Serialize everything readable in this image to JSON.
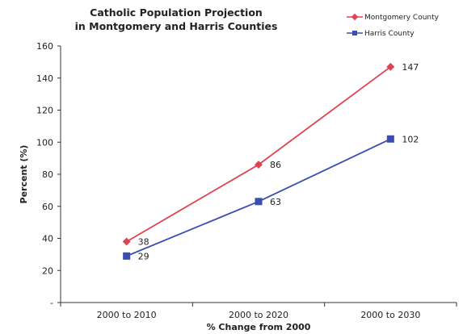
{
  "chart_data": {
    "type": "line",
    "title_lines": [
      "Catholic Population Projection",
      "in Montgomery and Harris Counties"
    ],
    "xlabel": "% Change from 2000",
    "ylabel": "Percent (%)",
    "categories": [
      "2000 to 2010",
      "2000 to 2020",
      "2000 to 2030"
    ],
    "ylim": [
      0,
      160
    ],
    "yticks": [
      0,
      20,
      40,
      60,
      80,
      100,
      120,
      140,
      160
    ],
    "ytick_labels": [
      "-",
      "20",
      "40",
      "60",
      "80",
      "100",
      "120",
      "140",
      "160"
    ],
    "grid": false,
    "legend_position": "top-right",
    "series": [
      {
        "name": "Montgomery County",
        "values": [
          38,
          86,
          147
        ],
        "value_labels": [
          "38",
          "86",
          "147"
        ],
        "color": "#e0424f",
        "marker": "diamond"
      },
      {
        "name": "Harris County",
        "values": [
          29,
          63,
          102
        ],
        "value_labels": [
          "29",
          "63",
          "102"
        ],
        "color": "#3a4eb0",
        "marker": "square"
      }
    ]
  }
}
